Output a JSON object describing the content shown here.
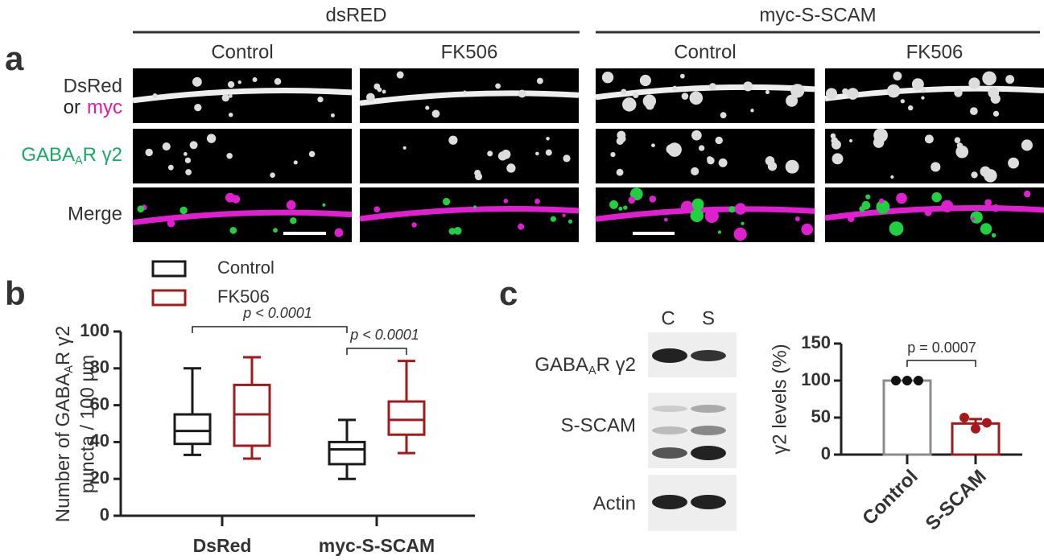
{
  "panel_a": {
    "letter": "a",
    "groups": [
      {
        "title": "dsRED",
        "conditions": [
          "Control",
          "FK506"
        ]
      },
      {
        "title": "myc-S-SCAM",
        "conditions": [
          "Control",
          "FK506"
        ]
      }
    ],
    "row_labels": {
      "dsred": "DsRed",
      "or": "or",
      "myc": "myc",
      "gaba": {
        "main": "GABA",
        "sub": "A",
        "rest": "R γ2"
      },
      "merge": "Merge"
    }
  },
  "chart_data": [
    {
      "type": "box",
      "letter": "b",
      "ylabel": {
        "main": "Number of GABA",
        "sub": "A",
        "rest": "R γ2",
        "line2": "puncta / 100 µm"
      },
      "categories": [
        "DsRed",
        "myc-S-SCAM"
      ],
      "series": [
        {
          "name": "Control",
          "color": "#1a1a1a",
          "min": [
            33,
            20
          ],
          "q1": [
            39,
            28
          ],
          "median": [
            46,
            36
          ],
          "q3": [
            55,
            40
          ],
          "max": [
            80,
            52
          ]
        },
        {
          "name": "FK506",
          "color": "#a3191c",
          "min": [
            31,
            34
          ],
          "q1": [
            38,
            44
          ],
          "median": [
            55,
            52
          ],
          "q3": [
            71,
            62
          ],
          "max": [
            86,
            84
          ]
        }
      ],
      "ylim": [
        0,
        100
      ],
      "yticks": [
        0,
        20,
        40,
        60,
        80,
        100
      ],
      "annotations": [
        "p < 0.0001",
        "p < 0.0001"
      ]
    },
    {
      "type": "bar",
      "letter": "c",
      "blot": {
        "lanes": [
          "C",
          "S"
        ],
        "rows": [
          {
            "main": "GABA",
            "sub": "A",
            "rest": "R γ2"
          },
          "S-SCAM",
          "Actin"
        ]
      },
      "ylabel": "γ2 levels (%)",
      "categories": [
        "Control",
        "S-SCAM"
      ],
      "values": [
        100,
        42
      ],
      "errors": [
        0,
        6
      ],
      "colors": [
        "#8c8c8c",
        "#a3191c"
      ],
      "points": [
        [
          100,
          100,
          100
        ],
        [
          50,
          35,
          43
        ]
      ],
      "ylim": [
        0,
        150
      ],
      "yticks": [
        0,
        50,
        100,
        150
      ],
      "annotation": "p = 0.0007"
    }
  ]
}
